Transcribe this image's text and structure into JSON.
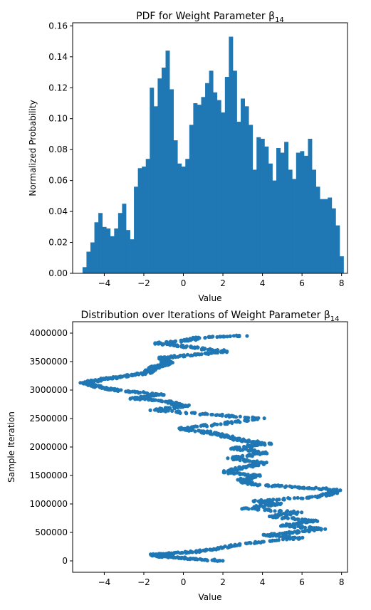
{
  "chart_data": [
    {
      "type": "bar",
      "subtype": "histogram",
      "title": "PDF for Weight Parameter β",
      "title_subscript": "14",
      "xlabel": "Value",
      "ylabel": "Normalized Probability",
      "xlim": [
        -5.6,
        8.3
      ],
      "ylim": [
        0,
        0.162
      ],
      "xticks": [
        -4,
        -2,
        0,
        2,
        4,
        6,
        8
      ],
      "xtick_labels": [
        "−4",
        "−2",
        "0",
        "2",
        "4",
        "6",
        "8"
      ],
      "yticks": [
        0,
        0.02,
        0.04,
        0.06,
        0.08,
        0.1,
        0.12,
        0.14,
        0.16
      ],
      "ytick_labels": [
        "0.00",
        "0.02",
        "0.04",
        "0.06",
        "0.08",
        "0.10",
        "0.12",
        "0.14",
        "0.16"
      ],
      "bin_start": -5.1,
      "bin_width": 0.2,
      "color": "#1f77b4",
      "grid": false,
      "values": [
        0.004,
        0.014,
        0.02,
        0.033,
        0.039,
        0.03,
        0.029,
        0.024,
        0.029,
        0.039,
        0.045,
        0.028,
        0.022,
        0.056,
        0.068,
        0.069,
        0.074,
        0.12,
        0.108,
        0.126,
        0.133,
        0.144,
        0.119,
        0.086,
        0.071,
        0.069,
        0.074,
        0.096,
        0.11,
        0.109,
        0.114,
        0.123,
        0.131,
        0.117,
        0.112,
        0.104,
        0.127,
        0.153,
        0.131,
        0.098,
        0.113,
        0.108,
        0.096,
        0.067,
        0.088,
        0.087,
        0.082,
        0.071,
        0.06,
        0.081,
        0.078,
        0.085,
        0.067,
        0.061,
        0.078,
        0.079,
        0.076,
        0.087,
        0.067,
        0.056,
        0.048,
        0.048,
        0.049,
        0.042,
        0.031,
        0.011
      ]
    },
    {
      "type": "scatter",
      "title": "Distribution over Iterations of Weight Parameter β",
      "title_subscript": "14",
      "xlabel": "Value",
      "ylabel": "Sample Iteration",
      "xlim": [
        -5.6,
        8.3
      ],
      "ylim": [
        -200000,
        4200000
      ],
      "xticks": [
        -4,
        -2,
        0,
        2,
        4,
        6,
        8
      ],
      "xtick_labels": [
        "−4",
        "−2",
        "0",
        "2",
        "4",
        "6",
        "8"
      ],
      "yticks": [
        0,
        500000,
        1000000,
        1500000,
        2000000,
        2500000,
        3000000,
        3500000,
        4000000
      ],
      "ytick_labels": [
        "0",
        "500000",
        "1000000",
        "1500000",
        "2000000",
        "2500000",
        "3000000",
        "3500000",
        "4000000"
      ],
      "color": "#1f77b4",
      "grid": false,
      "trace": [
        {
          "y": 0,
          "x": 2.0
        },
        {
          "y": 40000,
          "x": 0.3
        },
        {
          "y": 80000,
          "x": -1.0
        },
        {
          "y": 110000,
          "x": -1.5
        },
        {
          "y": 150000,
          "x": 0.2
        },
        {
          "y": 200000,
          "x": 1.5
        },
        {
          "y": 300000,
          "x": 3.0
        },
        {
          "y": 400000,
          "x": 6.0
        },
        {
          "y": 450000,
          "x": 4.2
        },
        {
          "y": 500000,
          "x": 5.5
        },
        {
          "y": 560000,
          "x": 7.0
        },
        {
          "y": 620000,
          "x": 5.0
        },
        {
          "y": 700000,
          "x": 6.7
        },
        {
          "y": 780000,
          "x": 4.5
        },
        {
          "y": 850000,
          "x": 5.8
        },
        {
          "y": 920000,
          "x": 3.2
        },
        {
          "y": 1000000,
          "x": 4.8
        },
        {
          "y": 1050000,
          "x": 3.6
        },
        {
          "y": 1120000,
          "x": 6.5
        },
        {
          "y": 1180000,
          "x": 7.5
        },
        {
          "y": 1250000,
          "x": 7.7
        },
        {
          "y": 1300000,
          "x": 5.5
        },
        {
          "y": 1350000,
          "x": 3.4
        },
        {
          "y": 1420000,
          "x": 2.9
        },
        {
          "y": 1500000,
          "x": 3.8
        },
        {
          "y": 1560000,
          "x": 2.1
        },
        {
          "y": 1640000,
          "x": 3.0
        },
        {
          "y": 1720000,
          "x": 4.0
        },
        {
          "y": 1800000,
          "x": 2.4
        },
        {
          "y": 1900000,
          "x": 4.1
        },
        {
          "y": 1980000,
          "x": 2.6
        },
        {
          "y": 2060000,
          "x": 4.3
        },
        {
          "y": 2120000,
          "x": 2.9
        },
        {
          "y": 2200000,
          "x": 2.0
        },
        {
          "y": 2260000,
          "x": 1.2
        },
        {
          "y": 2320000,
          "x": -0.2
        },
        {
          "y": 2400000,
          "x": 1.8
        },
        {
          "y": 2500000,
          "x": 3.9
        },
        {
          "y": 2580000,
          "x": 1.0
        },
        {
          "y": 2650000,
          "x": -1.5
        },
        {
          "y": 2720000,
          "x": 0.1
        },
        {
          "y": 2800000,
          "x": -0.8
        },
        {
          "y": 2860000,
          "x": -2.5
        },
        {
          "y": 2920000,
          "x": -1.0
        },
        {
          "y": 2980000,
          "x": -3.0
        },
        {
          "y": 3050000,
          "x": -4.2
        },
        {
          "y": 3120000,
          "x": -5.0
        },
        {
          "y": 3180000,
          "x": -4.3
        },
        {
          "y": 3230000,
          "x": -3.2
        },
        {
          "y": 3300000,
          "x": -1.9
        },
        {
          "y": 3400000,
          "x": -1.4
        },
        {
          "y": 3480000,
          "x": -0.8
        },
        {
          "y": 3560000,
          "x": -1.1
        },
        {
          "y": 3620000,
          "x": 0.5
        },
        {
          "y": 3680000,
          "x": 2.1
        },
        {
          "y": 3750000,
          "x": 0.5
        },
        {
          "y": 3820000,
          "x": -1.3
        },
        {
          "y": 3870000,
          "x": 0.2
        },
        {
          "y": 3920000,
          "x": 0.8
        },
        {
          "y": 3960000,
          "x": 3.1
        }
      ]
    }
  ]
}
